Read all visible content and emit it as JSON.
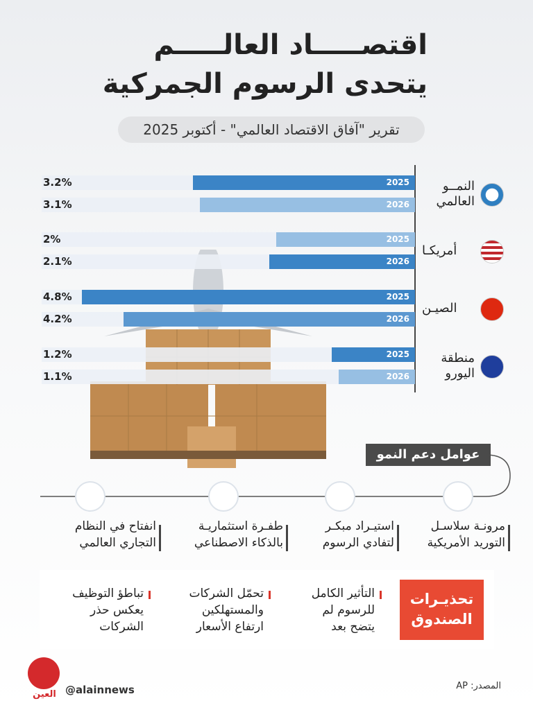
{
  "header": {
    "title": [
      "اقتصـــــاد العالـــــم",
      "يتحدى الرسوم الجمركية"
    ],
    "subtitle": "تقرير \"آفاق الاقتصاد العالمي\" - أكتوبر 2025"
  },
  "chart_data": {
    "type": "bar",
    "orientation": "horizontal-rtl",
    "categories": [
      "النمــو العالمي",
      "أمريكـا",
      "الصيـن",
      "منطقة اليورو"
    ],
    "xlim": [
      0,
      5
    ],
    "series": [
      {
        "name": "2025",
        "values": [
          3.2,
          2,
          4.8,
          1.2
        ],
        "value_labels": [
          "3.2%",
          "2%",
          "4.8%",
          "1.2%"
        ],
        "colors": [
          "#3b84c6",
          "#97bfe3",
          "#3b84c6",
          "#3b84c6"
        ]
      },
      {
        "name": "2026",
        "values": [
          3.1,
          2.1,
          4.2,
          1.1
        ],
        "value_labels": [
          "3.1%",
          "2.1%",
          "4.2%",
          "1.1%"
        ],
        "colors": [
          "#97bfe3",
          "#3b84c6",
          "#5b98d0",
          "#97bfe3"
        ]
      }
    ]
  },
  "growth_factors": {
    "title": "عوامل دعم النمو",
    "items": [
      [
        "مرونـة سلاسـل",
        "التوريد الأمريكية"
      ],
      [
        "استيـراد مبكـر",
        "لتفادي الرسوم"
      ],
      [
        "طفـرة استثماريـة",
        "بالذكاء الاصطناعي"
      ],
      [
        "انفتاح في النظام",
        "التجاري العالمي"
      ]
    ]
  },
  "warnings": {
    "title": [
      "تحذيـرات",
      "الصندوق"
    ],
    "items": [
      [
        "التأثير الكامل",
        "للرسوم لم",
        "يتضح بعد"
      ],
      [
        "تحمّل الشركات",
        "والمستهلكين",
        "ارتفاع الأسعار"
      ],
      [
        "تباطؤ التوظيف",
        "يعكس حذر",
        "الشركات"
      ]
    ]
  },
  "footer": {
    "source": "المصدر: AP",
    "handle": "@alainnews",
    "logo": "العين"
  }
}
